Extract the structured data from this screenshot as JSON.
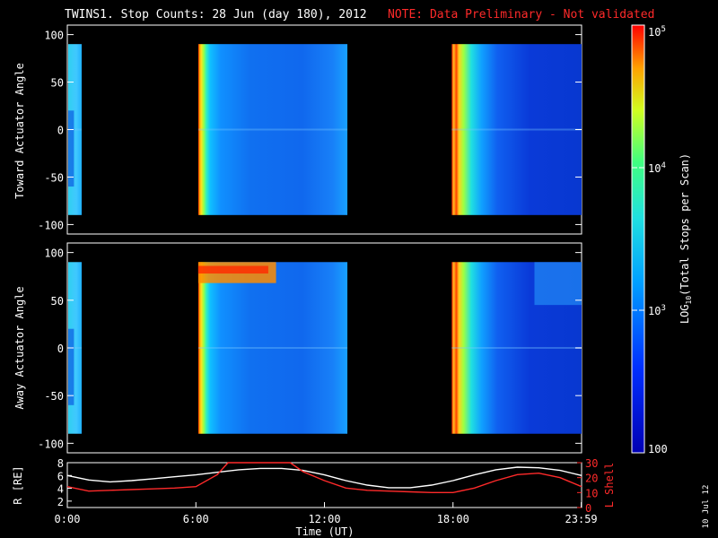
{
  "chart_data": [
    {
      "type": "heatmap",
      "panel": "toward",
      "title_main": "TWINS1. Stop Counts: 28 Jun (day 180), 2012",
      "title_note": "NOTE: Data Preliminary - Not validated",
      "ylabel": "Toward Actuator Angle",
      "ylim": [
        -110,
        110
      ],
      "yticks": [
        "100",
        "50",
        "0",
        "-50",
        "-100"
      ],
      "xlim_hours": [
        0,
        24
      ],
      "data_range_angle": [
        -90,
        90
      ],
      "segments_hours": [
        [
          0.0,
          0.67
        ],
        [
          6.07,
          13.07
        ],
        [
          17.9,
          24.0
        ]
      ],
      "intensity_profile": "high at segment start (~1e5), decaying to ~300 stops/scan"
    },
    {
      "type": "heatmap",
      "panel": "away",
      "ylabel": "Away Actuator Angle",
      "ylim": [
        -110,
        110
      ],
      "yticks": [
        "100",
        "50",
        "0",
        "-50",
        "-100"
      ],
      "xlim_hours": [
        0,
        24
      ],
      "data_range_angle": [
        -90,
        90
      ],
      "segments_hours": [
        [
          0.0,
          0.67
        ],
        [
          6.07,
          13.07
        ],
        [
          17.9,
          24.0
        ]
      ],
      "intensity_profile": "high at segment start, enhanced band near 70-90 deg from 6:00-9:30"
    },
    {
      "type": "line",
      "panel": "orbit",
      "ylabel_left": "R [RE]",
      "ylabel_right": "L Shell",
      "yticks_left": [
        "8",
        "6",
        "4",
        "2"
      ],
      "yticks_right": [
        "30",
        "20",
        "10",
        "0"
      ],
      "ylim_left": [
        1,
        8
      ],
      "ylim_right": [
        0,
        30
      ],
      "xlabel": "Time (UT)",
      "xticks": [
        "0:00",
        "6:00",
        "12:00",
        "18:00",
        "23:59"
      ],
      "series": [
        {
          "name": "R",
          "color": "#ffffff",
          "x": [
            0,
            1,
            2,
            3,
            4,
            5,
            6,
            7,
            8,
            9,
            10,
            11,
            12,
            13,
            14,
            15,
            16,
            17,
            18,
            19,
            20,
            21,
            22,
            23,
            24
          ],
          "y": [
            6.0,
            5.3,
            5.0,
            5.2,
            5.5,
            5.8,
            6.1,
            6.5,
            6.9,
            7.1,
            7.1,
            6.8,
            6.1,
            5.2,
            4.5,
            4.1,
            4.1,
            4.5,
            5.2,
            6.1,
            6.9,
            7.3,
            7.2,
            6.8,
            6.0
          ]
        },
        {
          "name": "L Shell",
          "color": "#ff2a2a",
          "x": [
            0,
            1,
            2,
            3,
            4,
            5,
            6,
            7,
            7.5,
            10.4,
            11,
            12,
            13,
            14,
            15,
            16,
            17,
            18,
            19,
            20,
            21,
            22,
            23,
            24
          ],
          "y": [
            14,
            11,
            11.5,
            12,
            12.5,
            13,
            14,
            22,
            30,
            30,
            24,
            18,
            13,
            11.5,
            11,
            10.5,
            10,
            10,
            13,
            18,
            22,
            23,
            20,
            14
          ]
        }
      ]
    },
    {
      "type": "colorbar",
      "label": "LOG10(Total Stops per Scan)",
      "label_base": "LOG",
      "label_sub": "10",
      "label_rest": "(Total Stops per Scan)",
      "range": [
        100,
        100000
      ],
      "ticks": [
        {
          "base": "10",
          "exp": "5",
          "value": 100000
        },
        {
          "base": "10",
          "exp": "4",
          "value": 10000
        },
        {
          "base": "10",
          "exp": "3",
          "value": 1000
        },
        {
          "base": "100",
          "exp": "",
          "value": 100
        }
      ]
    }
  ],
  "footer": {
    "date_stamp": "10 Jul 12"
  }
}
